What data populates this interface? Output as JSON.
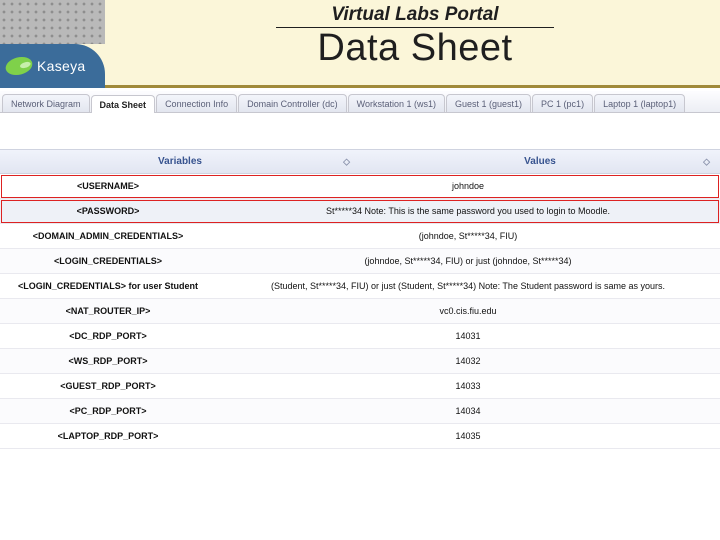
{
  "header": {
    "subtitle": "Virtual Labs Portal",
    "title": "Data Sheet",
    "logo_text": "Kaseya",
    "colors": {
      "page_bg": "#fbf6d9",
      "logo_bg": "#3b6c9a",
      "logo_mark": "#7fd14a",
      "accent_line": "#a08a3a"
    }
  },
  "tabs": {
    "active_index": 1,
    "items": [
      {
        "label": "Network Diagram"
      },
      {
        "label": "Data Sheet"
      },
      {
        "label": "Connection Info"
      },
      {
        "label": "Domain Controller (dc)"
      },
      {
        "label": "Workstation 1 (ws1)"
      },
      {
        "label": "Guest 1 (guest1)"
      },
      {
        "label": "PC 1 (pc1)"
      },
      {
        "label": "Laptop 1 (laptop1)"
      }
    ]
  },
  "table": {
    "columns": {
      "variables": "Variables",
      "values": "Values"
    },
    "header_color": "#37538f",
    "highlight_color": "#d22",
    "rows": [
      {
        "var": "<USERNAME>",
        "val": "johndoe",
        "highlight": true,
        "alt": false
      },
      {
        "var": "<PASSWORD>",
        "val": "St*****34 Note: This is the same password you used to login to Moodle.",
        "highlight": true,
        "alt": true
      },
      {
        "var": "<DOMAIN_ADMIN_CREDENTIALS>",
        "val": "(johndoe, St*****34, FIU)",
        "highlight": false,
        "alt": false
      },
      {
        "var": "<LOGIN_CREDENTIALS>",
        "val": "(johndoe, St*****34, FIU) or just (johndoe, St*****34)",
        "highlight": false,
        "alt": false
      },
      {
        "var": "<LOGIN_CREDENTIALS> for user Student",
        "val": "(Student, St*****34, FIU) or just (Student, St*****34) Note: The Student password is same as yours.",
        "highlight": false,
        "alt": false
      },
      {
        "var": "<NAT_ROUTER_IP>",
        "val": "vc0.cis.fiu.edu",
        "highlight": false,
        "alt": false
      },
      {
        "var": "<DC_RDP_PORT>",
        "val": "14031",
        "highlight": false,
        "alt": false
      },
      {
        "var": "<WS_RDP_PORT>",
        "val": "14032",
        "highlight": false,
        "alt": false
      },
      {
        "var": "<GUEST_RDP_PORT>",
        "val": "14033",
        "highlight": false,
        "alt": false
      },
      {
        "var": "<PC_RDP_PORT>",
        "val": "14034",
        "highlight": false,
        "alt": false
      },
      {
        "var": "<LAPTOP_RDP_PORT>",
        "val": "14035",
        "highlight": false,
        "alt": false
      }
    ]
  }
}
